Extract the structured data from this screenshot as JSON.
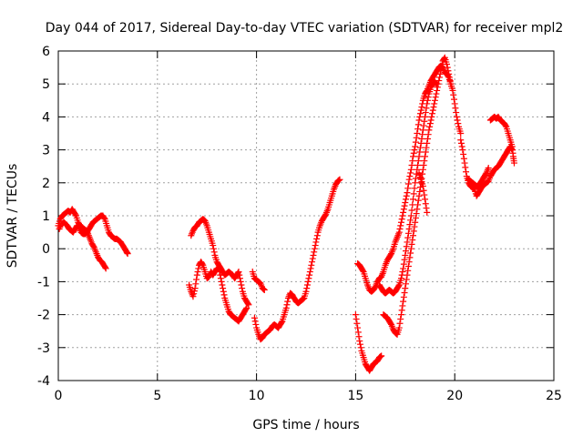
{
  "chart_data": {
    "type": "scatter",
    "title": "Day 044 of 2017, Sidereal Day-to-day VTEC variation (SDTVAR) for receiver mpl2",
    "xlabel": "GPS time / hours",
    "ylabel": "SDTVAR / TECUs",
    "xlim": [
      0,
      25
    ],
    "ylim": [
      -4,
      6
    ],
    "xticks": [
      0,
      5,
      10,
      15,
      20,
      25
    ],
    "yticks": [
      -4,
      -3,
      -2,
      -1,
      0,
      1,
      2,
      3,
      4,
      5,
      6
    ],
    "grid": true,
    "marker": "+",
    "color": "#ff0000",
    "segments": [
      [
        [
          0.0,
          0.7
        ],
        [
          0.1,
          0.9
        ],
        [
          0.2,
          1.0
        ],
        [
          0.3,
          1.05
        ],
        [
          0.4,
          1.1
        ],
        [
          0.5,
          1.15
        ],
        [
          0.6,
          1.1
        ],
        [
          0.7,
          1.2
        ],
        [
          0.8,
          1.1
        ],
        [
          0.9,
          1.0
        ],
        [
          1.0,
          0.8
        ],
        [
          1.1,
          0.7
        ],
        [
          1.2,
          0.65
        ],
        [
          1.3,
          0.6
        ],
        [
          1.4,
          0.55
        ],
        [
          1.5,
          0.45
        ],
        [
          1.6,
          0.3
        ],
        [
          1.7,
          0.15
        ],
        [
          1.8,
          0.05
        ],
        [
          1.9,
          -0.1
        ],
        [
          2.0,
          -0.25
        ],
        [
          2.1,
          -0.35
        ],
        [
          2.2,
          -0.4
        ],
        [
          2.3,
          -0.5
        ],
        [
          2.4,
          -0.6
        ]
      ],
      [
        [
          0.05,
          0.6
        ],
        [
          0.15,
          0.75
        ],
        [
          0.3,
          0.8
        ],
        [
          0.45,
          0.7
        ],
        [
          0.55,
          0.6
        ],
        [
          0.65,
          0.55
        ],
        [
          0.75,
          0.5
        ],
        [
          0.85,
          0.6
        ],
        [
          0.95,
          0.7
        ],
        [
          1.05,
          0.65
        ],
        [
          1.15,
          0.5
        ],
        [
          1.25,
          0.45
        ],
        [
          1.35,
          0.45
        ],
        [
          1.45,
          0.5
        ],
        [
          1.55,
          0.6
        ],
        [
          1.65,
          0.7
        ],
        [
          1.75,
          0.8
        ],
        [
          1.85,
          0.85
        ],
        [
          1.95,
          0.9
        ],
        [
          2.05,
          0.95
        ],
        [
          2.15,
          1.0
        ],
        [
          2.25,
          1.0
        ],
        [
          2.35,
          0.9
        ],
        [
          2.45,
          0.7
        ],
        [
          2.55,
          0.5
        ],
        [
          2.65,
          0.4
        ],
        [
          2.75,
          0.35
        ],
        [
          2.85,
          0.3
        ],
        [
          2.95,
          0.3
        ],
        [
          3.05,
          0.25
        ],
        [
          3.15,
          0.2
        ],
        [
          3.25,
          0.1
        ],
        [
          3.35,
          0.0
        ],
        [
          3.45,
          -0.1
        ],
        [
          3.5,
          -0.15
        ]
      ],
      [
        [
          6.6,
          -1.1
        ],
        [
          6.7,
          -1.3
        ],
        [
          6.8,
          -1.45
        ],
        [
          6.9,
          -1.2
        ],
        [
          7.0,
          -0.8
        ],
        [
          7.1,
          -0.5
        ],
        [
          7.2,
          -0.4
        ],
        [
          7.3,
          -0.5
        ],
        [
          7.4,
          -0.7
        ],
        [
          7.5,
          -0.9
        ],
        [
          7.6,
          -0.85
        ],
        [
          7.7,
          -0.7
        ],
        [
          7.8,
          -0.8
        ],
        [
          7.9,
          -0.7
        ],
        [
          8.0,
          -0.6
        ],
        [
          8.1,
          -0.6
        ],
        [
          8.2,
          -0.9
        ],
        [
          8.3,
          -1.2
        ],
        [
          8.4,
          -1.5
        ],
        [
          8.5,
          -1.7
        ],
        [
          8.6,
          -1.9
        ],
        [
          8.7,
          -2.0
        ],
        [
          8.8,
          -2.05
        ],
        [
          8.9,
          -2.1
        ],
        [
          9.0,
          -2.15
        ],
        [
          9.1,
          -2.2
        ],
        [
          9.2,
          -2.1
        ],
        [
          9.3,
          -2.0
        ],
        [
          9.4,
          -1.9
        ],
        [
          9.5,
          -1.8
        ]
      ],
      [
        [
          6.7,
          0.4
        ],
        [
          6.8,
          0.55
        ],
        [
          6.9,
          0.65
        ],
        [
          7.0,
          0.7
        ],
        [
          7.1,
          0.8
        ],
        [
          7.2,
          0.85
        ],
        [
          7.3,
          0.9
        ],
        [
          7.4,
          0.85
        ],
        [
          7.5,
          0.7
        ],
        [
          7.6,
          0.5
        ],
        [
          7.7,
          0.3
        ],
        [
          7.8,
          0.1
        ],
        [
          7.9,
          -0.2
        ],
        [
          8.0,
          -0.4
        ],
        [
          8.1,
          -0.5
        ],
        [
          8.2,
          -0.6
        ],
        [
          8.3,
          -0.7
        ],
        [
          8.4,
          -0.8
        ],
        [
          8.5,
          -0.75
        ],
        [
          8.6,
          -0.7
        ],
        [
          8.7,
          -0.75
        ],
        [
          8.8,
          -0.8
        ],
        [
          8.9,
          -0.9
        ],
        [
          9.0,
          -0.8
        ],
        [
          9.1,
          -0.7
        ],
        [
          9.2,
          -1.0
        ],
        [
          9.3,
          -1.3
        ],
        [
          9.4,
          -1.5
        ],
        [
          9.5,
          -1.6
        ],
        [
          9.6,
          -1.7
        ]
      ],
      [
        [
          9.8,
          -0.7
        ],
        [
          9.9,
          -0.9
        ],
        [
          10.0,
          -0.95
        ],
        [
          10.1,
          -1.0
        ],
        [
          10.2,
          -1.05
        ],
        [
          10.3,
          -1.2
        ],
        [
          10.4,
          -1.25
        ]
      ],
      [
        [
          9.9,
          -2.1
        ],
        [
          10.0,
          -2.4
        ],
        [
          10.1,
          -2.6
        ],
        [
          10.2,
          -2.75
        ],
        [
          10.3,
          -2.7
        ],
        [
          10.4,
          -2.6
        ],
        [
          10.5,
          -2.55
        ],
        [
          10.6,
          -2.5
        ],
        [
          10.7,
          -2.45
        ],
        [
          10.8,
          -2.35
        ],
        [
          10.9,
          -2.3
        ],
        [
          11.0,
          -2.35
        ],
        [
          11.1,
          -2.4
        ],
        [
          11.2,
          -2.3
        ],
        [
          11.3,
          -2.2
        ],
        [
          11.4,
          -2.0
        ],
        [
          11.5,
          -1.8
        ],
        [
          11.6,
          -1.5
        ],
        [
          11.7,
          -1.35
        ],
        [
          11.8,
          -1.4
        ],
        [
          11.9,
          -1.5
        ],
        [
          12.0,
          -1.6
        ],
        [
          12.1,
          -1.65
        ],
        [
          12.2,
          -1.6
        ],
        [
          12.3,
          -1.55
        ],
        [
          12.4,
          -1.5
        ],
        [
          12.5,
          -1.3
        ],
        [
          12.6,
          -1.0
        ],
        [
          12.7,
          -0.7
        ],
        [
          12.8,
          -0.4
        ],
        [
          12.9,
          -0.1
        ],
        [
          13.0,
          0.2
        ],
        [
          13.1,
          0.5
        ],
        [
          13.2,
          0.7
        ],
        [
          13.3,
          0.85
        ],
        [
          13.4,
          0.95
        ],
        [
          13.5,
          1.05
        ],
        [
          13.6,
          1.2
        ],
        [
          13.7,
          1.4
        ],
        [
          13.8,
          1.6
        ],
        [
          13.9,
          1.8
        ],
        [
          14.0,
          1.95
        ],
        [
          14.1,
          2.05
        ],
        [
          14.2,
          2.1
        ]
      ],
      [
        [
          15.0,
          -2.0
        ],
        [
          15.1,
          -2.4
        ],
        [
          15.2,
          -2.8
        ],
        [
          15.3,
          -3.1
        ],
        [
          15.4,
          -3.3
        ],
        [
          15.5,
          -3.5
        ],
        [
          15.6,
          -3.6
        ],
        [
          15.7,
          -3.7
        ],
        [
          15.8,
          -3.6
        ],
        [
          15.9,
          -3.5
        ],
        [
          16.0,
          -3.45
        ],
        [
          16.1,
          -3.4
        ],
        [
          16.2,
          -3.3
        ],
        [
          16.3,
          -3.25
        ]
      ],
      [
        [
          15.1,
          -0.45
        ],
        [
          15.2,
          -0.5
        ],
        [
          15.3,
          -0.6
        ],
        [
          15.4,
          -0.7
        ],
        [
          15.5,
          -0.9
        ],
        [
          15.6,
          -1.1
        ],
        [
          15.7,
          -1.25
        ],
        [
          15.8,
          -1.3
        ],
        [
          15.9,
          -1.25
        ],
        [
          16.0,
          -1.15
        ],
        [
          16.1,
          -1.0
        ],
        [
          16.2,
          -0.9
        ],
        [
          16.3,
          -0.85
        ],
        [
          16.4,
          -0.7
        ],
        [
          16.5,
          -0.5
        ],
        [
          16.6,
          -0.35
        ],
        [
          16.7,
          -0.25
        ],
        [
          16.8,
          -0.15
        ],
        [
          16.9,
          0.0
        ],
        [
          17.0,
          0.2
        ],
        [
          17.1,
          0.35
        ],
        [
          17.2,
          0.5
        ],
        [
          17.3,
          0.8
        ],
        [
          17.4,
          1.1
        ],
        [
          17.5,
          1.4
        ],
        [
          17.6,
          1.7
        ],
        [
          17.7,
          2.1
        ],
        [
          17.8,
          2.4
        ],
        [
          17.9,
          2.8
        ],
        [
          18.0,
          3.1
        ],
        [
          18.1,
          3.5
        ],
        [
          18.2,
          3.9
        ],
        [
          18.3,
          4.2
        ],
        [
          18.4,
          4.5
        ],
        [
          18.5,
          4.7
        ],
        [
          18.6,
          4.8
        ],
        [
          18.7,
          4.95
        ],
        [
          18.8,
          5.1
        ],
        [
          18.9,
          5.2
        ],
        [
          19.0,
          5.3
        ],
        [
          19.1,
          5.4
        ],
        [
          19.2,
          5.5
        ],
        [
          19.3,
          5.55
        ],
        [
          19.4,
          5.5
        ],
        [
          19.5,
          5.35
        ],
        [
          19.6,
          5.3
        ],
        [
          19.7,
          5.2
        ],
        [
          19.8,
          5.0
        ],
        [
          19.9,
          4.8
        ],
        [
          20.0,
          4.4
        ],
        [
          20.1,
          4.0
        ],
        [
          20.2,
          3.7
        ],
        [
          20.3,
          3.5
        ]
      ],
      [
        [
          16.4,
          -2.0
        ],
        [
          16.5,
          -2.05
        ],
        [
          16.6,
          -2.1
        ],
        [
          16.7,
          -2.2
        ],
        [
          16.8,
          -2.3
        ],
        [
          16.9,
          -2.45
        ],
        [
          17.0,
          -2.55
        ],
        [
          17.1,
          -2.6
        ],
        [
          17.2,
          -2.4
        ],
        [
          17.3,
          -2.0
        ],
        [
          17.4,
          -1.6
        ],
        [
          17.5,
          -1.2
        ],
        [
          17.6,
          -0.8
        ],
        [
          17.7,
          -0.4
        ],
        [
          17.8,
          0.0
        ],
        [
          17.9,
          0.4
        ],
        [
          18.0,
          0.8
        ],
        [
          18.1,
          1.2
        ],
        [
          18.2,
          1.6
        ],
        [
          18.3,
          2.0
        ],
        [
          18.4,
          2.4
        ],
        [
          18.5,
          2.8
        ],
        [
          18.6,
          3.2
        ],
        [
          18.7,
          3.6
        ],
        [
          18.8,
          3.9
        ],
        [
          18.9,
          4.2
        ],
        [
          19.0,
          4.5
        ],
        [
          19.1,
          4.8
        ],
        [
          19.2,
          5.1
        ],
        [
          19.3,
          5.4
        ],
        [
          19.4,
          5.7
        ],
        [
          19.5,
          5.8
        ],
        [
          19.6,
          5.6
        ],
        [
          19.7,
          5.3
        ],
        [
          19.8,
          5.0
        ]
      ],
      [
        [
          16.2,
          -1.1
        ],
        [
          16.3,
          -1.2
        ],
        [
          16.4,
          -1.3
        ],
        [
          16.5,
          -1.35
        ],
        [
          16.6,
          -1.3
        ],
        [
          16.7,
          -1.25
        ],
        [
          16.8,
          -1.3
        ],
        [
          16.9,
          -1.35
        ],
        [
          17.0,
          -1.3
        ],
        [
          17.1,
          -1.2
        ],
        [
          17.2,
          -1.1
        ],
        [
          17.3,
          -0.9
        ],
        [
          17.4,
          -0.6
        ],
        [
          17.5,
          -0.2
        ],
        [
          17.6,
          0.2
        ],
        [
          17.7,
          0.6
        ],
        [
          17.8,
          1.0
        ],
        [
          17.9,
          1.5
        ],
        [
          18.0,
          2.0
        ],
        [
          18.1,
          2.4
        ],
        [
          18.2,
          2.8
        ],
        [
          18.3,
          3.2
        ],
        [
          18.4,
          3.6
        ],
        [
          18.5,
          4.0
        ],
        [
          18.6,
          4.4
        ],
        [
          18.7,
          4.7
        ],
        [
          18.8,
          4.9
        ],
        [
          18.9,
          5.0
        ],
        [
          19.0,
          5.05
        ],
        [
          19.1,
          5.0
        ]
      ],
      [
        [
          20.3,
          3.3
        ],
        [
          20.4,
          3.0
        ],
        [
          20.5,
          2.6
        ],
        [
          20.6,
          2.2
        ],
        [
          20.7,
          2.0
        ],
        [
          20.8,
          1.9
        ],
        [
          20.9,
          1.85
        ],
        [
          21.0,
          1.8
        ],
        [
          21.1,
          1.6
        ],
        [
          21.2,
          1.7
        ],
        [
          21.3,
          1.8
        ],
        [
          21.4,
          1.9
        ],
        [
          21.5,
          1.95
        ],
        [
          21.6,
          2.0
        ],
        [
          21.7,
          2.05
        ],
        [
          21.8,
          2.2
        ],
        [
          21.9,
          2.3
        ],
        [
          22.0,
          2.4
        ],
        [
          22.1,
          2.45
        ],
        [
          22.2,
          2.5
        ],
        [
          22.3,
          2.6
        ],
        [
          22.4,
          2.7
        ],
        [
          22.5,
          2.8
        ],
        [
          22.6,
          2.9
        ],
        [
          22.7,
          3.0
        ],
        [
          22.8,
          3.1
        ],
        [
          22.9,
          3.0
        ]
      ],
      [
        [
          20.7,
          2.1
        ],
        [
          20.8,
          2.05
        ],
        [
          20.9,
          2.0
        ],
        [
          21.0,
          1.95
        ],
        [
          21.1,
          1.9
        ],
        [
          21.2,
          1.9
        ],
        [
          21.3,
          2.0
        ],
        [
          21.4,
          2.1
        ],
        [
          21.5,
          2.2
        ],
        [
          21.6,
          2.3
        ],
        [
          21.7,
          2.45
        ]
      ],
      [
        [
          21.8,
          3.9
        ],
        [
          21.9,
          3.95
        ],
        [
          22.0,
          4.0
        ],
        [
          22.1,
          3.95
        ],
        [
          22.2,
          4.0
        ],
        [
          22.3,
          3.9
        ],
        [
          22.4,
          3.85
        ],
        [
          22.5,
          3.8
        ],
        [
          22.6,
          3.7
        ],
        [
          22.7,
          3.5
        ],
        [
          22.8,
          3.3
        ],
        [
          22.9,
          3.1
        ],
        [
          22.95,
          2.8
        ],
        [
          23.0,
          2.6
        ]
      ],
      [
        [
          18.2,
          2.3
        ],
        [
          18.3,
          2.1
        ],
        [
          18.4,
          1.9
        ],
        [
          18.5,
          1.5
        ],
        [
          18.6,
          1.1
        ]
      ]
    ]
  }
}
